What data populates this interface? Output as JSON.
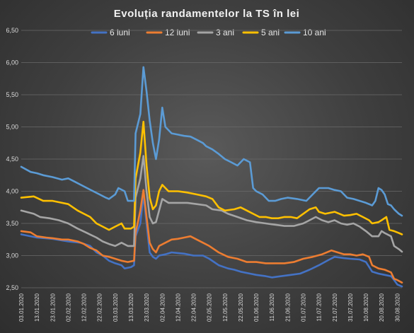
{
  "chart_data": {
    "type": "line",
    "title": "Evoluția  randamentelor  la TS în lei",
    "ylim": [
      2.5,
      6.5
    ],
    "yticks": [
      "2,50",
      "3,00",
      "3,50",
      "4,00",
      "4,50",
      "5,00",
      "5,50",
      "6,00",
      "6,50"
    ],
    "xticks": [
      "03.01.2020",
      "13.01.2020",
      "23.01.2020",
      "02.02.2020",
      "12.02.2020",
      "22.02.2020",
      "03.03.2020",
      "13.03.2020",
      "23.03.2020",
      "02.04.2020",
      "12.04.2020",
      "22.04.2020",
      "02.05.2020",
      "12.05.2020",
      "22.05.2020",
      "01.06.2020",
      "11.06.2020",
      "21.06.2020",
      "01.07.2020",
      "11.07.2020",
      "21.07.2020",
      "31.07.2020",
      "10.08.2020",
      "20.08.2020",
      "30.08.2020"
    ],
    "x_range_days": [
      0,
      243
    ],
    "grid": true,
    "legend_position": "top",
    "series": [
      {
        "name": "6 luni",
        "color": "#4472C4",
        "points": [
          [
            0,
            3.33
          ],
          [
            10,
            3.28
          ],
          [
            20,
            3.26
          ],
          [
            30,
            3.22
          ],
          [
            38,
            3.2
          ],
          [
            44,
            3.15
          ],
          [
            48,
            3.05
          ],
          [
            52,
            3.0
          ],
          [
            56,
            2.92
          ],
          [
            60,
            2.88
          ],
          [
            64,
            2.85
          ],
          [
            66,
            2.8
          ],
          [
            70,
            2.82
          ],
          [
            72,
            2.85
          ],
          [
            73,
            3.3
          ],
          [
            76,
            3.5
          ],
          [
            78,
            3.95
          ],
          [
            80,
            3.5
          ],
          [
            82,
            3.05
          ],
          [
            84,
            2.98
          ],
          [
            86,
            2.95
          ],
          [
            88,
            3.0
          ],
          [
            92,
            3.02
          ],
          [
            96,
            3.05
          ],
          [
            100,
            3.04
          ],
          [
            104,
            3.03
          ],
          [
            110,
            3.0
          ],
          [
            116,
            3.0
          ],
          [
            120,
            2.95
          ],
          [
            126,
            2.85
          ],
          [
            132,
            2.8
          ],
          [
            136,
            2.78
          ],
          [
            140,
            2.75
          ],
          [
            146,
            2.72
          ],
          [
            150,
            2.7
          ],
          [
            156,
            2.68
          ],
          [
            160,
            2.66
          ],
          [
            166,
            2.68
          ],
          [
            172,
            2.7
          ],
          [
            178,
            2.72
          ],
          [
            184,
            2.78
          ],
          [
            190,
            2.85
          ],
          [
            196,
            2.93
          ],
          [
            200,
            2.98
          ],
          [
            206,
            2.96
          ],
          [
            210,
            2.95
          ],
          [
            216,
            2.94
          ],
          [
            220,
            2.9
          ],
          [
            224,
            2.75
          ],
          [
            228,
            2.72
          ],
          [
            232,
            2.7
          ],
          [
            236,
            2.68
          ],
          [
            238,
            2.62
          ],
          [
            240,
            2.55
          ],
          [
            243,
            2.52
          ]
        ]
      },
      {
        "name": "12 luni",
        "color": "#ED7D31",
        "points": [
          [
            0,
            3.38
          ],
          [
            6,
            3.36
          ],
          [
            10,
            3.3
          ],
          [
            16,
            3.28
          ],
          [
            20,
            3.27
          ],
          [
            26,
            3.25
          ],
          [
            30,
            3.25
          ],
          [
            36,
            3.22
          ],
          [
            40,
            3.18
          ],
          [
            44,
            3.12
          ],
          [
            48,
            3.08
          ],
          [
            52,
            3.0
          ],
          [
            56,
            2.98
          ],
          [
            60,
            2.95
          ],
          [
            64,
            2.92
          ],
          [
            68,
            2.9
          ],
          [
            72,
            2.92
          ],
          [
            73,
            3.35
          ],
          [
            76,
            3.7
          ],
          [
            78,
            4.02
          ],
          [
            80,
            3.6
          ],
          [
            82,
            3.2
          ],
          [
            84,
            3.1
          ],
          [
            86,
            3.05
          ],
          [
            88,
            3.15
          ],
          [
            92,
            3.2
          ],
          [
            96,
            3.25
          ],
          [
            100,
            3.26
          ],
          [
            104,
            3.28
          ],
          [
            108,
            3.3
          ],
          [
            112,
            3.25
          ],
          [
            116,
            3.2
          ],
          [
            120,
            3.15
          ],
          [
            126,
            3.05
          ],
          [
            132,
            2.98
          ],
          [
            138,
            2.95
          ],
          [
            144,
            2.9
          ],
          [
            150,
            2.9
          ],
          [
            156,
            2.88
          ],
          [
            162,
            2.88
          ],
          [
            168,
            2.88
          ],
          [
            174,
            2.9
          ],
          [
            180,
            2.95
          ],
          [
            186,
            2.98
          ],
          [
            192,
            3.02
          ],
          [
            198,
            3.08
          ],
          [
            202,
            3.05
          ],
          [
            206,
            3.02
          ],
          [
            210,
            3.02
          ],
          [
            214,
            3.0
          ],
          [
            218,
            3.02
          ],
          [
            222,
            2.98
          ],
          [
            224,
            2.85
          ],
          [
            228,
            2.8
          ],
          [
            232,
            2.78
          ],
          [
            236,
            2.74
          ],
          [
            238,
            2.64
          ],
          [
            240,
            2.62
          ],
          [
            243,
            2.58
          ]
        ]
      },
      {
        "name": "3 ani",
        "color": "#A5A5A5",
        "points": [
          [
            0,
            3.7
          ],
          [
            8,
            3.65
          ],
          [
            12,
            3.6
          ],
          [
            18,
            3.58
          ],
          [
            24,
            3.55
          ],
          [
            30,
            3.5
          ],
          [
            36,
            3.42
          ],
          [
            42,
            3.35
          ],
          [
            48,
            3.28
          ],
          [
            52,
            3.22
          ],
          [
            56,
            3.18
          ],
          [
            60,
            3.15
          ],
          [
            64,
            3.2
          ],
          [
            68,
            3.15
          ],
          [
            72,
            3.15
          ],
          [
            73,
            3.9
          ],
          [
            76,
            4.2
          ],
          [
            78,
            4.55
          ],
          [
            80,
            4.0
          ],
          [
            82,
            3.6
          ],
          [
            84,
            3.5
          ],
          [
            86,
            3.52
          ],
          [
            88,
            3.7
          ],
          [
            90,
            3.88
          ],
          [
            94,
            3.82
          ],
          [
            100,
            3.82
          ],
          [
            106,
            3.82
          ],
          [
            112,
            3.8
          ],
          [
            118,
            3.78
          ],
          [
            122,
            3.72
          ],
          [
            128,
            3.7
          ],
          [
            132,
            3.65
          ],
          [
            138,
            3.6
          ],
          [
            144,
            3.55
          ],
          [
            150,
            3.52
          ],
          [
            156,
            3.5
          ],
          [
            162,
            3.48
          ],
          [
            168,
            3.46
          ],
          [
            174,
            3.46
          ],
          [
            180,
            3.5
          ],
          [
            184,
            3.55
          ],
          [
            188,
            3.6
          ],
          [
            192,
            3.55
          ],
          [
            196,
            3.52
          ],
          [
            200,
            3.55
          ],
          [
            204,
            3.5
          ],
          [
            208,
            3.48
          ],
          [
            212,
            3.5
          ],
          [
            216,
            3.45
          ],
          [
            220,
            3.38
          ],
          [
            224,
            3.3
          ],
          [
            228,
            3.3
          ],
          [
            230,
            3.38
          ],
          [
            232,
            3.35
          ],
          [
            236,
            3.3
          ],
          [
            238,
            3.15
          ],
          [
            241,
            3.1
          ],
          [
            243,
            3.06
          ]
        ]
      },
      {
        "name": "5 ani",
        "color": "#FFC000",
        "points": [
          [
            0,
            3.9
          ],
          [
            8,
            3.92
          ],
          [
            14,
            3.85
          ],
          [
            20,
            3.85
          ],
          [
            26,
            3.82
          ],
          [
            30,
            3.8
          ],
          [
            36,
            3.7
          ],
          [
            40,
            3.65
          ],
          [
            44,
            3.6
          ],
          [
            48,
            3.5
          ],
          [
            52,
            3.45
          ],
          [
            56,
            3.4
          ],
          [
            60,
            3.45
          ],
          [
            64,
            3.5
          ],
          [
            66,
            3.42
          ],
          [
            70,
            3.42
          ],
          [
            72,
            3.45
          ],
          [
            73,
            4.2
          ],
          [
            76,
            4.6
          ],
          [
            78,
            5.08
          ],
          [
            80,
            4.4
          ],
          [
            82,
            3.9
          ],
          [
            84,
            3.72
          ],
          [
            86,
            3.78
          ],
          [
            88,
            4.0
          ],
          [
            90,
            4.1
          ],
          [
            94,
            4.0
          ],
          [
            100,
            4.0
          ],
          [
            106,
            3.98
          ],
          [
            112,
            3.95
          ],
          [
            118,
            3.92
          ],
          [
            122,
            3.88
          ],
          [
            126,
            3.75
          ],
          [
            130,
            3.7
          ],
          [
            136,
            3.72
          ],
          [
            140,
            3.75
          ],
          [
            144,
            3.7
          ],
          [
            148,
            3.65
          ],
          [
            152,
            3.6
          ],
          [
            156,
            3.6
          ],
          [
            160,
            3.58
          ],
          [
            164,
            3.58
          ],
          [
            168,
            3.6
          ],
          [
            172,
            3.6
          ],
          [
            176,
            3.58
          ],
          [
            180,
            3.65
          ],
          [
            184,
            3.72
          ],
          [
            188,
            3.75
          ],
          [
            190,
            3.68
          ],
          [
            194,
            3.65
          ],
          [
            200,
            3.68
          ],
          [
            206,
            3.62
          ],
          [
            210,
            3.63
          ],
          [
            214,
            3.65
          ],
          [
            218,
            3.6
          ],
          [
            222,
            3.55
          ],
          [
            224,
            3.5
          ],
          [
            228,
            3.52
          ],
          [
            230,
            3.55
          ],
          [
            233,
            3.6
          ],
          [
            235,
            3.4
          ],
          [
            238,
            3.38
          ],
          [
            241,
            3.35
          ],
          [
            243,
            3.33
          ]
        ]
      },
      {
        "name": "10 ani",
        "color": "#5B9BD5",
        "points": [
          [
            0,
            4.38
          ],
          [
            6,
            4.3
          ],
          [
            10,
            4.28
          ],
          [
            14,
            4.25
          ],
          [
            20,
            4.22
          ],
          [
            26,
            4.18
          ],
          [
            30,
            4.2
          ],
          [
            34,
            4.15
          ],
          [
            38,
            4.1
          ],
          [
            42,
            4.05
          ],
          [
            46,
            4.0
          ],
          [
            50,
            3.95
          ],
          [
            54,
            3.9
          ],
          [
            56,
            3.88
          ],
          [
            60,
            3.95
          ],
          [
            62,
            4.05
          ],
          [
            66,
            4.0
          ],
          [
            68,
            3.85
          ],
          [
            70,
            3.85
          ],
          [
            72,
            3.85
          ],
          [
            73,
            4.9
          ],
          [
            76,
            5.2
          ],
          [
            78,
            5.93
          ],
          [
            80,
            5.55
          ],
          [
            82,
            5.1
          ],
          [
            84,
            4.75
          ],
          [
            86,
            4.5
          ],
          [
            88,
            4.8
          ],
          [
            90,
            5.3
          ],
          [
            92,
            5.0
          ],
          [
            96,
            4.9
          ],
          [
            100,
            4.88
          ],
          [
            104,
            4.86
          ],
          [
            108,
            4.85
          ],
          [
            112,
            4.8
          ],
          [
            116,
            4.75
          ],
          [
            118,
            4.7
          ],
          [
            122,
            4.65
          ],
          [
            126,
            4.58
          ],
          [
            130,
            4.5
          ],
          [
            134,
            4.45
          ],
          [
            138,
            4.4
          ],
          [
            142,
            4.5
          ],
          [
            146,
            4.45
          ],
          [
            148,
            4.05
          ],
          [
            150,
            4.0
          ],
          [
            154,
            3.95
          ],
          [
            158,
            3.85
          ],
          [
            162,
            3.85
          ],
          [
            166,
            3.88
          ],
          [
            170,
            3.9
          ],
          [
            176,
            3.88
          ],
          [
            182,
            3.85
          ],
          [
            186,
            3.95
          ],
          [
            190,
            4.05
          ],
          [
            196,
            4.05
          ],
          [
            200,
            4.02
          ],
          [
            204,
            4.0
          ],
          [
            208,
            3.9
          ],
          [
            212,
            3.88
          ],
          [
            216,
            3.85
          ],
          [
            220,
            3.82
          ],
          [
            224,
            3.78
          ],
          [
            226,
            3.85
          ],
          [
            228,
            4.05
          ],
          [
            230,
            4.02
          ],
          [
            232,
            3.95
          ],
          [
            234,
            3.8
          ],
          [
            236,
            3.78
          ],
          [
            238,
            3.72
          ],
          [
            241,
            3.65
          ],
          [
            243,
            3.62
          ]
        ]
      }
    ]
  }
}
